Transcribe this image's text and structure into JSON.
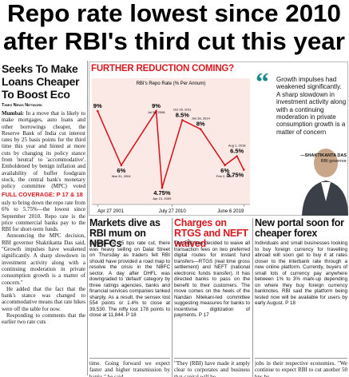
{
  "headline": [
    "Repo rate lowest since 2010",
    "after RBI's third cut this year"
  ],
  "lead": {
    "title": "Seeks To Make Loans Cheaper To Boost Eco",
    "byline": "Times News Network",
    "dateline": "Mumbai:",
    "top_text": "In a move that is likely to make mortgages, auto loans and other borrowings cheaper, the Reserve Bank of India cut interest rates by 25 basis points for the third time this year and hinted at more cuts by changing its policy stance from 'neutral' to 'accommodative'. Emboldened by benign inflation and availability of buffer foodgrain stock, the central bank's monetary policy committee (MPC) voted unanimo-",
    "full_coverage": "FULL COVERAGE: P 17 & 18",
    "bottom_paragraphs": [
      "usly to bring down the repo rate from 6% to 5.75%—the lowest since September 2010. Repo rate is the price commercial banks pay to the RBI for short-term funds.",
      "Announcing the MPC decision, RBI governor Shaktikanta Das said, \"Growth impulses have weakened significantly. A sharp slowdown in investment activity along with a continuing moderation in private consumption growth is a matter of concern.\"",
      "He added that the fact that the bank's stance was changed to accommodative means that rate hikes were off the table for now.",
      "Responding to comments that the earlier two rate cuts"
    ]
  },
  "feature": {
    "heading": "FURTHER REDUCTION COMING?",
    "quote": "Growth impulses had weakened significantly. A sharp slowdown in investment activity along with a continuing moderation in private consumption growth is a matter of concern",
    "quote_author": "—SHAKTIKANTA DAS",
    "quote_role": "RBI governor"
  },
  "chart_data": {
    "type": "line",
    "title": "RBI's Repo Rate (% Per Annum)",
    "x": [
      2001.32,
      2004.25,
      2008.58,
      2009.3,
      2011.82,
      2014.08,
      2017.09,
      2018.58,
      2019.43
    ],
    "values": [
      9,
      6,
      9,
      4.75,
      8.5,
      8,
      6,
      6.5,
      5.75
    ],
    "value_labels": [
      "9%",
      "6%",
      "9%",
      "4.75%",
      "8.5%",
      "8%",
      "6%",
      "6.5%",
      "5.75%"
    ],
    "point_dates": [
      null,
      "Mar 31, 2004",
      "Jul 30, 2008",
      "Apr 21, 2009",
      "Oct 25, 2011",
      "Jan 28, 2014",
      "Feb 2, 2017",
      "Aug 1, 2018",
      null
    ],
    "color": "#d71920",
    "xlim": [
      2001,
      2020
    ],
    "ylim": [
      4,
      10.2
    ],
    "xticks": [
      {
        "value": 2001.32,
        "label": "Apr 27 2001"
      },
      {
        "value": 2010.57,
        "label": "July 27 2010"
      },
      {
        "value": 2019.43,
        "label": "June 6 2019"
      }
    ]
  },
  "stories": [
    {
      "title": "Markets dive as RBI mum on NBFCs",
      "body": "Despite the 25 bps rate cut, there was heavy selling on Dalal Street on Thursday as traders felt RBI should have provided a road map to resolve the crisis in the NBFC sector. A day after DHFL was downgraded to 'default' category by three ratings agencies, banks and financial services companies tanked sharply. As a result, the sensex lost 554 points or 1.4% to close at 39,530. The nifty lost 178 points to close at 11,844. P 18",
      "tail": "time. Going forward we expect faster and higher transmission by banks,\" he said."
    },
    {
      "title": "Charges on RTGS and NEFT waived",
      "body": "The RBI has decided to waive all transaction fees on two preferred digital routes for instant fund transfers—RTGS (real time gross settlement) and NEFT (national electronic funds transfer). It has directed banks to pass on the benefit to their customers. The move comes on the heels of the Nandan Nilekani-led committee suggesting measures for banks to incentivise digitization of payments. P 17",
      "tail": "\"They (RBI) have made it amply clear to corporates and business that capital will be"
    },
    {
      "title": "New portal soon for cheaper forex",
      "body": "Individuals and small businesses looking to buy foreign currency for travelling abroad will soon get to buy it at rates closer to the interbank rate through a new online platform. Currently, buyers of small lots of currency pay anywhere between 1% to 3% mark-up depending on where they buy foreign currency banknotes. RBI said the platform being tested now will be available for users by early August. P 18",
      "tail": "jobs in their respective economies. \"We continue to expect RBI to cut another 50 bps by"
    }
  ]
}
